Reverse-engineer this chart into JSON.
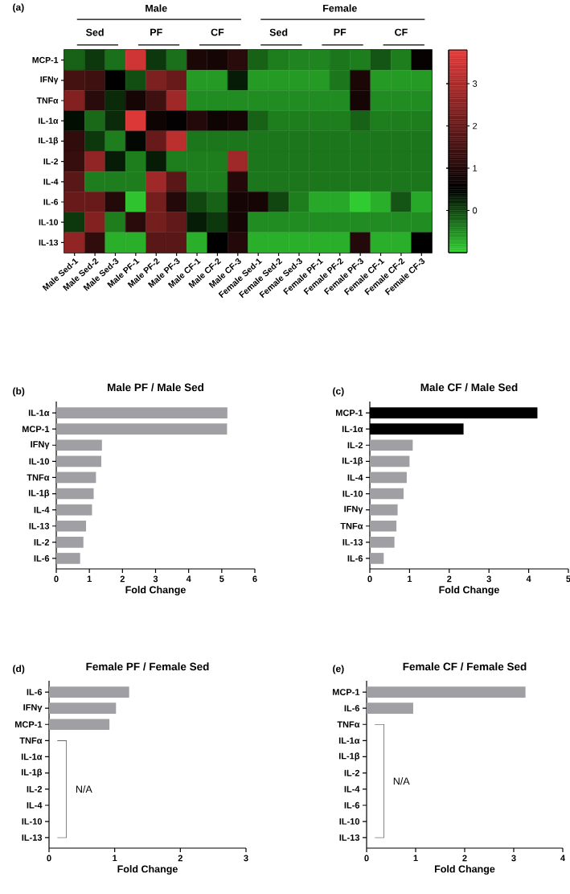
{
  "chart_data": [
    {
      "type": "heatmap",
      "annotations": [
        "(a)",
        "Male",
        "Female",
        "Sed",
        "PF",
        "CF",
        "Sed",
        "PF",
        "CF"
      ],
      "categories": [
        "Male Sed-1",
        "Male Sed-2",
        "Male Sed-3",
        "Male PF-1",
        "Male PF-2",
        "Male PF-3",
        "Male CF-1",
        "Male CF-2",
        "Male CF-3",
        "Female Sed-1",
        "Female Sed-2",
        "Female Sed-3",
        "Female PF-1",
        "Female PF-2",
        "Female PF-3",
        "Female CF-1",
        "Female CF-2",
        "Female CF-3"
      ],
      "y_categories": [
        "MCP-1",
        "IFNγ",
        "TNFα",
        "IL-1α",
        "IL-1β",
        "IL-2",
        "IL-4",
        "IL-6",
        "IL-10",
        "IL-13"
      ],
      "cells": [
        [
          -0.2,
          0.1,
          -0.3,
          3.5,
          0.1,
          -0.3,
          0.9,
          0.8,
          1.1,
          -0.2,
          -0.4,
          -0.45,
          -0.45,
          -0.35,
          -0.4,
          -0.1,
          -0.4,
          0.6
        ],
        [
          1.5,
          1.4,
          0.5,
          -0.05,
          2.3,
          2.0,
          -0.6,
          -0.6,
          0.3,
          -0.6,
          -0.6,
          -0.6,
          -0.6,
          -0.35,
          0.9,
          -0.6,
          -0.6,
          -0.6
        ],
        [
          2.4,
          1.1,
          0.2,
          0.8,
          1.4,
          2.8,
          -0.5,
          -0.5,
          -0.5,
          -0.5,
          -0.5,
          -0.5,
          -0.5,
          -0.5,
          0.8,
          -0.5,
          -0.5,
          -0.5
        ],
        [
          0.4,
          -0.25,
          0.2,
          3.7,
          0.7,
          0.55,
          1.0,
          0.7,
          0.8,
          -0.2,
          -0.4,
          -0.4,
          -0.4,
          -0.4,
          -0.2,
          -0.4,
          -0.4,
          -0.4
        ],
        [
          1.2,
          0.1,
          -0.4,
          0.45,
          2.0,
          3.2,
          -0.35,
          -0.35,
          -0.35,
          -0.35,
          -0.35,
          -0.35,
          -0.35,
          -0.35,
          -0.35,
          -0.35,
          -0.35,
          -0.35
        ],
        [
          1.3,
          2.6,
          0.3,
          -0.4,
          0.3,
          -0.4,
          -0.4,
          -0.4,
          2.8,
          -0.35,
          -0.35,
          -0.35,
          -0.35,
          -0.35,
          -0.35,
          -0.35,
          -0.35,
          -0.35
        ],
        [
          1.8,
          -0.4,
          -0.4,
          -0.4,
          2.8,
          1.8,
          -0.4,
          -0.4,
          1.0,
          -0.35,
          -0.35,
          -0.35,
          -0.35,
          -0.35,
          -0.35,
          -0.35,
          -0.35,
          -0.35
        ],
        [
          2.0,
          2.0,
          1.0,
          -0.9,
          2.2,
          1.0,
          0.0,
          -0.2,
          0.8,
          0.8,
          0.0,
          -0.4,
          -0.7,
          -0.7,
          -0.95,
          -0.75,
          -0.1,
          -0.7
        ],
        [
          0.1,
          2.4,
          -0.4,
          1.1,
          2.2,
          1.9,
          0.3,
          0.1,
          0.8,
          -0.5,
          -0.5,
          -0.5,
          -0.5,
          -0.5,
          -0.5,
          -0.5,
          -0.5,
          -0.5
        ],
        [
          2.6,
          1.2,
          -0.75,
          -0.75,
          1.8,
          1.8,
          -0.75,
          0.5,
          1.0,
          -0.75,
          -0.75,
          -0.75,
          -0.75,
          -0.75,
          1.0,
          -0.75,
          -0.75,
          0.5
        ]
      ],
      "clim": [
        -1,
        3.8
      ],
      "cticks": [
        0,
        1,
        2,
        3
      ]
    },
    {
      "type": "bar",
      "orientation": "horizontal",
      "title": "Male PF / Male Sed",
      "xlabel": "Fold Change",
      "annotations": [
        "(b)"
      ],
      "categories": [
        "IL-1α",
        "MCP-1",
        "IFNγ",
        "IL-10",
        "TNFα",
        "IL-1β",
        "IL-4",
        "IL-13",
        "IL-2",
        "IL-6"
      ],
      "values": [
        5.17,
        5.16,
        1.38,
        1.36,
        1.2,
        1.13,
        1.08,
        0.9,
        0.82,
        0.72
      ],
      "colors": [
        "#a0a0a4",
        "#a0a0a4",
        "#a0a0a4",
        "#a0a0a4",
        "#a0a0a4",
        "#a0a0a4",
        "#a0a0a4",
        "#a0a0a4",
        "#a0a0a4",
        "#a0a0a4"
      ],
      "xlim": [
        0,
        6
      ],
      "xticks": [
        0,
        1,
        2,
        3,
        4,
        5,
        6
      ]
    },
    {
      "type": "bar",
      "orientation": "horizontal",
      "title": "Male CF / Male Sed",
      "xlabel": "Fold Change",
      "annotations": [
        "(c)"
      ],
      "categories": [
        "MCP-1",
        "IL-1α",
        "IL-2",
        "IL-1β",
        "IL-4",
        "IL-10",
        "IFNγ",
        "TNFα",
        "IL-13",
        "IL-6"
      ],
      "values": [
        4.22,
        2.36,
        1.08,
        1.0,
        0.93,
        0.85,
        0.7,
        0.67,
        0.62,
        0.35
      ],
      "colors": [
        "#000000",
        "#000000",
        "#a0a0a4",
        "#a0a0a4",
        "#a0a0a4",
        "#a0a0a4",
        "#a0a0a4",
        "#a0a0a4",
        "#a0a0a4",
        "#a0a0a4"
      ],
      "xlim": [
        0,
        5
      ],
      "xticks": [
        0,
        1,
        2,
        3,
        4,
        5
      ]
    },
    {
      "type": "bar",
      "orientation": "horizontal",
      "title": "Female PF / Female Sed",
      "xlabel": "Fold Change",
      "annotations": [
        "(d)",
        "N/A"
      ],
      "categories": [
        "IL-6",
        "IFNγ",
        "MCP-1",
        "TNFα",
        "IL-1α",
        "IL-1β",
        "IL-2",
        "IL-4",
        "IL-10",
        "IL-13"
      ],
      "values": [
        1.22,
        1.02,
        0.92,
        null,
        null,
        null,
        null,
        null,
        null,
        null
      ],
      "colors": [
        "#a0a0a4",
        "#a0a0a4",
        "#a0a0a4",
        null,
        null,
        null,
        null,
        null,
        null,
        null
      ],
      "xlim": [
        0,
        3
      ],
      "xticks": [
        0,
        1,
        2,
        3
      ]
    },
    {
      "type": "bar",
      "orientation": "horizontal",
      "title": "Female CF / Female Sed",
      "xlabel": "Fold Change",
      "annotations": [
        "(e)",
        "N/A"
      ],
      "categories": [
        "MCP-1",
        "IL-6",
        "TNFα",
        "IL-1α",
        "IL-1β",
        "IL-2",
        "IL-4",
        "IL-6",
        "IL-10",
        "IL-13"
      ],
      "values": [
        3.24,
        0.95,
        null,
        null,
        null,
        null,
        null,
        null,
        null,
        null
      ],
      "colors": [
        "#a0a0a4",
        "#a0a0a4",
        null,
        null,
        null,
        null,
        null,
        null,
        null,
        null
      ],
      "xlim": [
        0,
        4
      ],
      "xticks": [
        0,
        1,
        2,
        3,
        4
      ]
    }
  ]
}
